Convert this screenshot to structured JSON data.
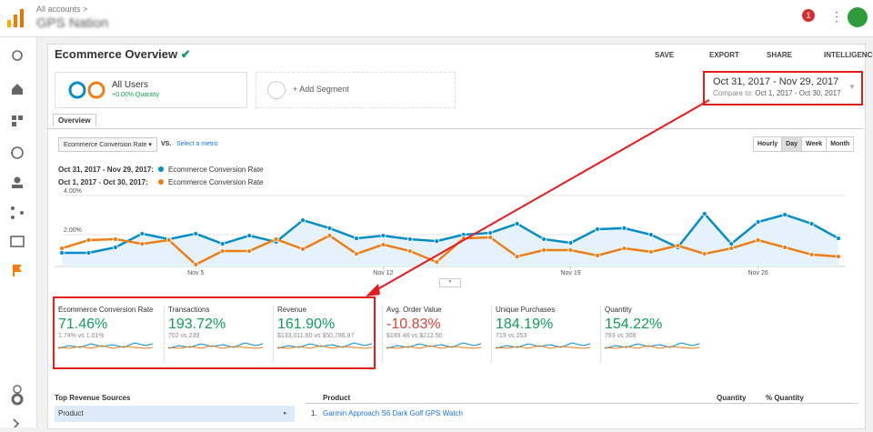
{
  "header": {
    "breadcrumb": "All accounts >",
    "property": "GPS Nation",
    "notifications": "1"
  },
  "toolbar": {
    "title": "Ecommerce Overview",
    "actions": [
      "SAVE",
      "EXPORT",
      "SHARE",
      "INTELLIGENCE"
    ]
  },
  "segments": {
    "name": "All Users",
    "detail": "+0.00% Quantity",
    "add": "+ Add Segment"
  },
  "date_range": {
    "range": "Oct 31, 2017 - Nov 29, 2017",
    "compare_label": "Compare to:",
    "compare": "Oct 1, 2017 - Oct 30, 2017"
  },
  "tab": "Overview",
  "controls": {
    "metric": "Ecommerce Conversion Rate",
    "vs": "VS.",
    "select": "Select a metric",
    "granularity": [
      "Hourly",
      "Day",
      "Week",
      "Month"
    ],
    "active": "Day"
  },
  "trend_chart": {
    "type": "line",
    "categories": [
      null,
      null,
      null,
      null,
      null,
      "Nov 5",
      null,
      null,
      null,
      null,
      null,
      null,
      "Nov 12",
      null,
      null,
      null,
      null,
      null,
      null,
      "Nov 19",
      null,
      null,
      null,
      null,
      null,
      null,
      "Nov 26",
      null,
      null,
      null
    ],
    "series": [
      {
        "name": "Ecommerce Conversion Rate",
        "period": "Oct 31, 2017 - Nov 29, 2017:",
        "color": "#058dc7",
        "values": [
          1.07,
          1.07,
          1.35,
          2.05,
          1.77,
          2.05,
          1.53,
          1.95,
          1.63,
          2.74,
          2.33,
          1.81,
          1.95,
          1.77,
          1.67,
          2.0,
          2.09,
          2.56,
          1.77,
          1.58,
          2.28,
          2.33,
          2.0,
          1.35,
          3.07,
          1.53,
          2.65,
          3.02,
          2.56,
          1.81
        ]
      },
      {
        "name": "Ecommerce Conversion Rate",
        "period": "Oct 1, 2017 - Oct 30, 2017:",
        "color": "#ed7e17",
        "values": [
          1.3,
          1.72,
          1.77,
          1.53,
          1.72,
          0.47,
          1.16,
          1.16,
          1.77,
          1.26,
          1.95,
          1.02,
          1.49,
          1.16,
          0.6,
          1.81,
          1.86,
          0.88,
          1.21,
          1.21,
          0.93,
          1.3,
          1.12,
          1.44,
          1.02,
          1.3,
          1.72,
          1.35,
          0.98,
          0.88
        ]
      }
    ],
    "ylim": [
      0,
      4
    ],
    "yticks": [
      {
        "value": 2,
        "label": "2.00%"
      },
      {
        "value": 4,
        "label": "4.00%"
      }
    ]
  },
  "scorecards": [
    {
      "label": "Ecommerce Conversion Rate",
      "value": "71.46%",
      "compare": "1.74% vs 1.01%"
    },
    {
      "label": "Transactions",
      "value": "193.72%",
      "compare": "702 vs 239"
    },
    {
      "label": "Revenue",
      "value": "161.90%",
      "compare": "$133,011.60 vs $50,786.97"
    },
    {
      "label": "Avg. Order Value",
      "value": "-10.83%",
      "compare": "$189.48 vs $212.50"
    },
    {
      "label": "Unique Purchases",
      "value": "184.19%",
      "compare": "719 vs 253"
    },
    {
      "label": "Quantity",
      "value": "154.22%",
      "compare": "783 vs 308"
    }
  ],
  "bottom": {
    "sources_title": "Top Revenue Sources",
    "source": "Product",
    "table": {
      "columns": [
        "Product",
        "Quantity",
        "% Quantity"
      ],
      "rows": [
        [
          "1.",
          "Garmin Approach S6 Dark Golf GPS Watch"
        ]
      ]
    }
  }
}
